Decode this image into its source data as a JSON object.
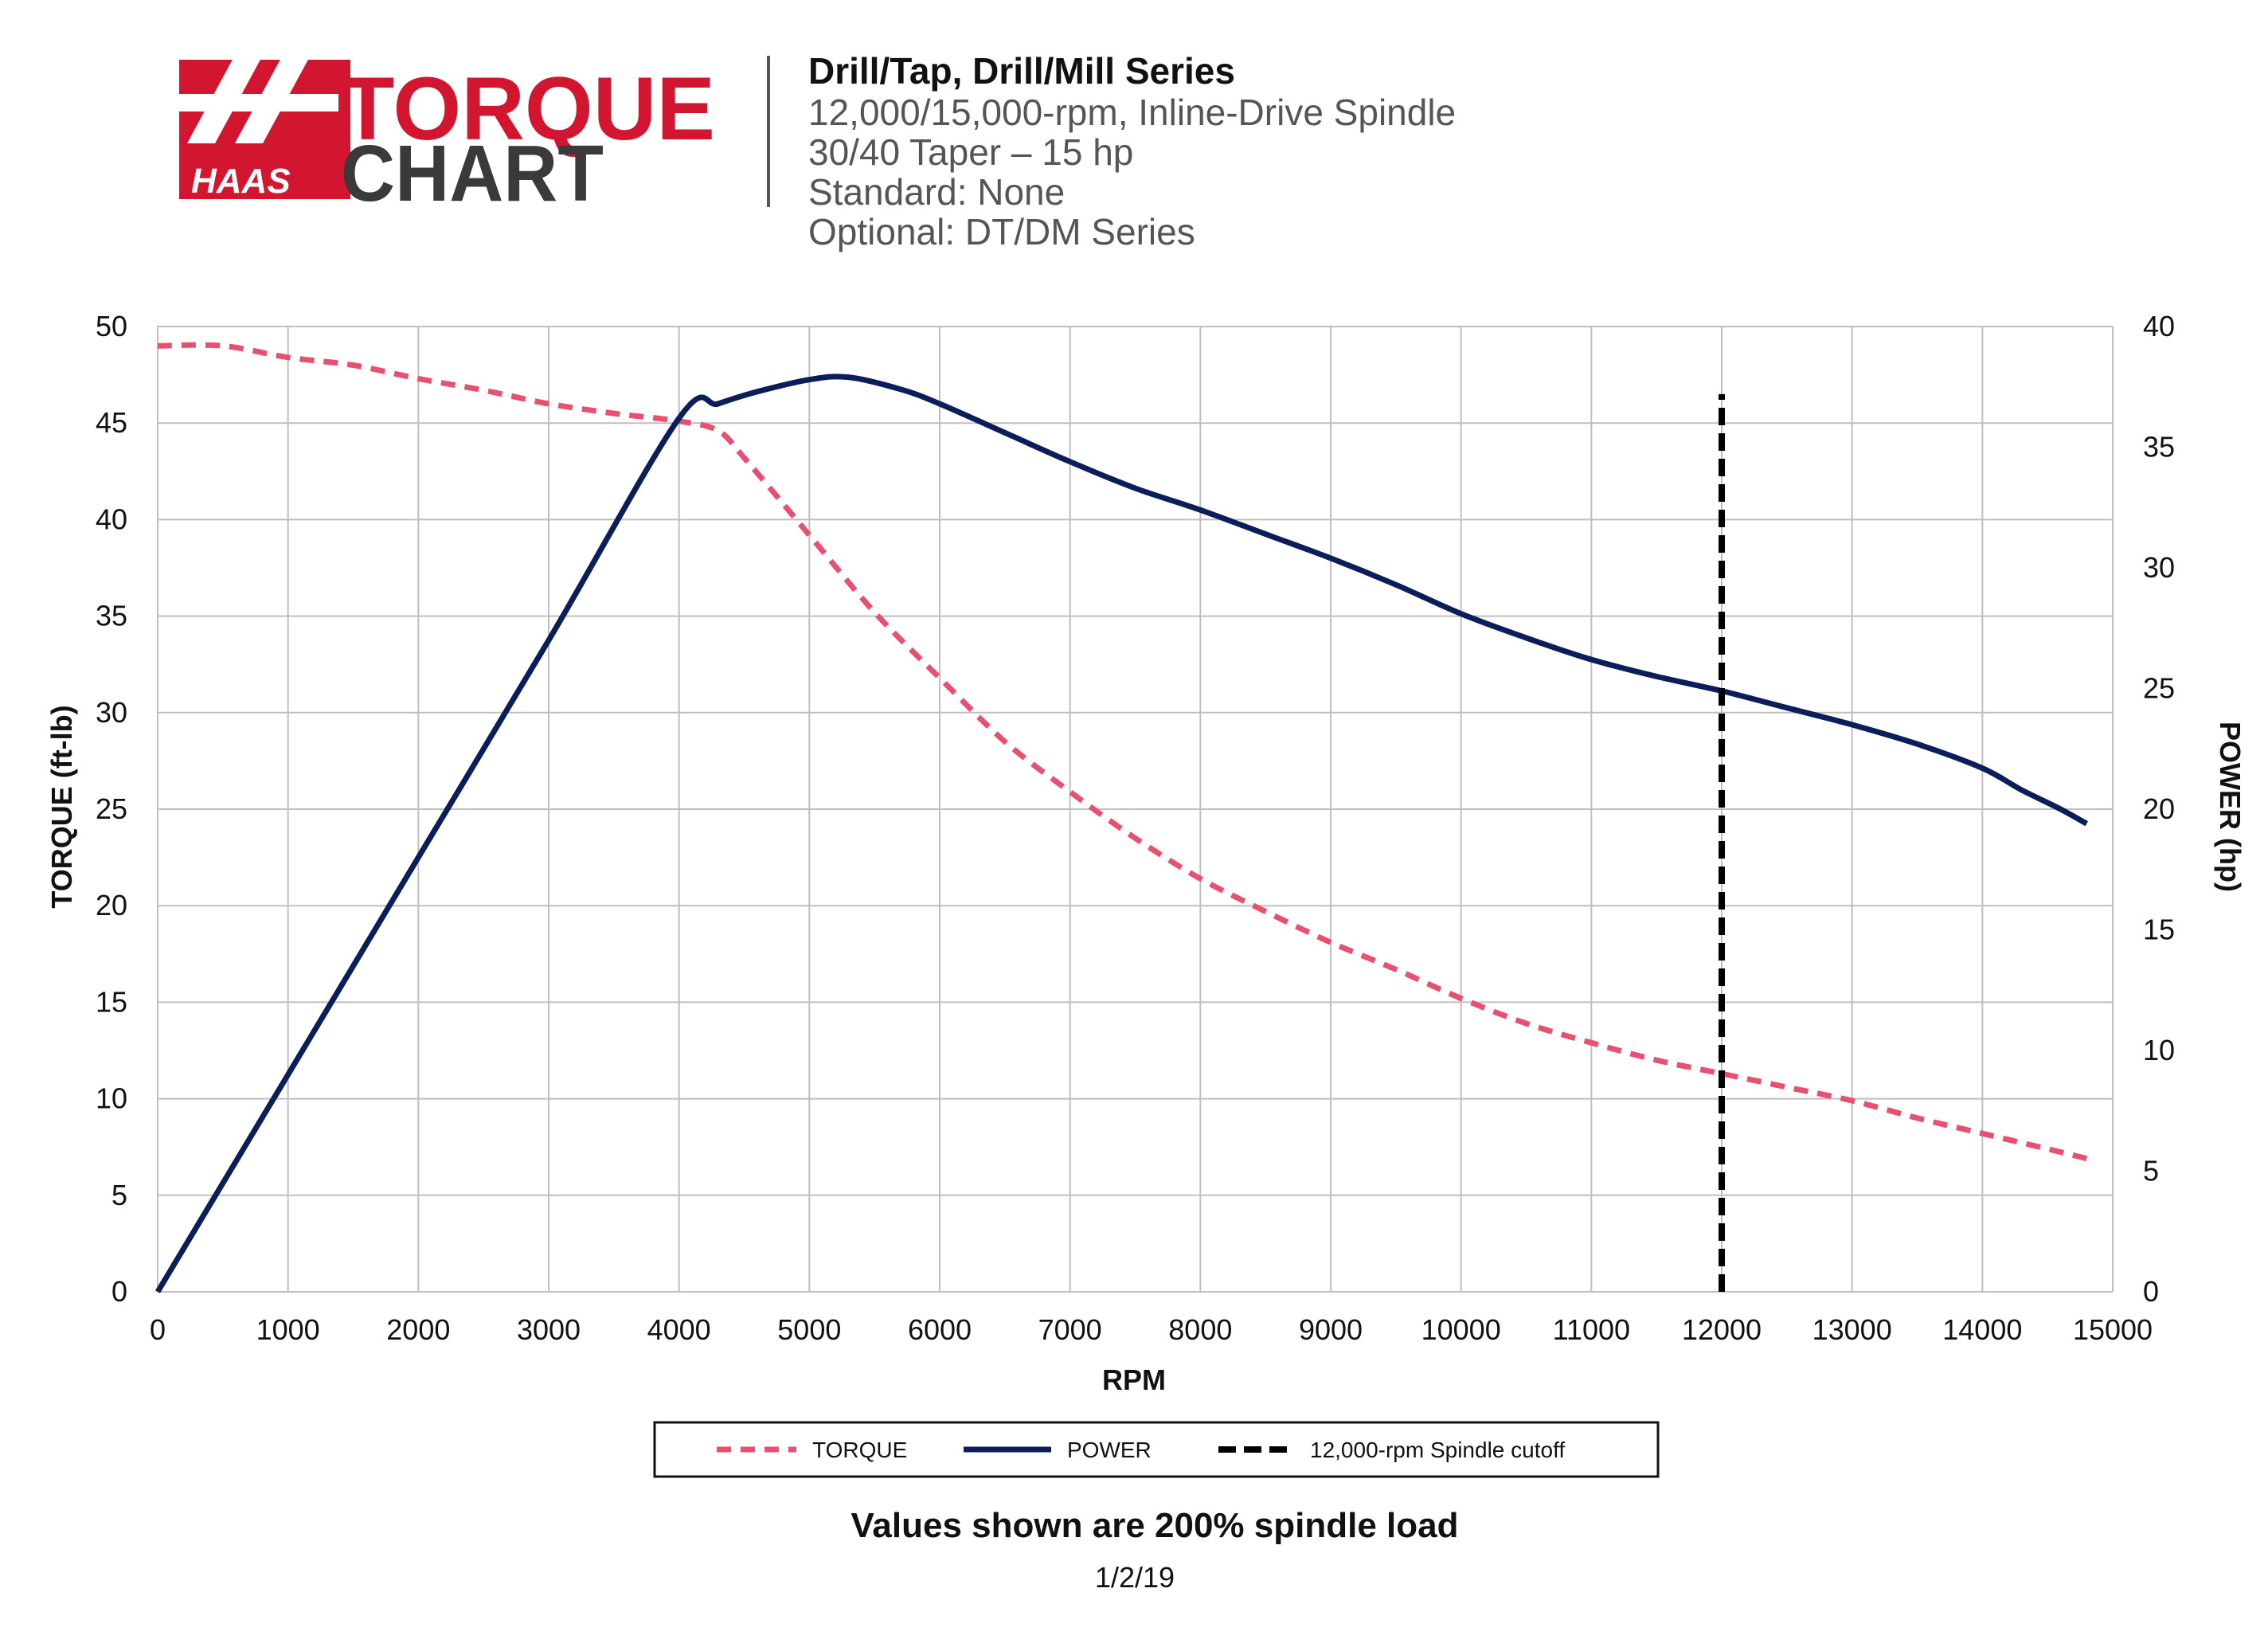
{
  "logo": {
    "brand": "HAAS",
    "word1": "TORQUE",
    "word2": "CHART"
  },
  "header": {
    "title": "Drill/Tap, Drill/Mill Series",
    "line1": "12,000/15,000-rpm, Inline-Drive Spindle",
    "line2": "30/40 Taper – 15 hp",
    "line3": "Standard: None",
    "line4": "Optional: DT/DM Series"
  },
  "footnote": "Values shown are 200% spindle load",
  "date": "1/2/19",
  "colors": {
    "torque": "#e8506f",
    "power": "#0c1e5a",
    "cutoff": "#000000",
    "grid": "#bfbfbf",
    "logo_red": "#d3162f",
    "logo_dark": "#3a3a3a"
  },
  "chart_data": {
    "type": "line",
    "xlabel": "RPM",
    "ylabel": "TORQUE (ft-lb)",
    "y2label": "POWER (hp)",
    "xlim": [
      0,
      15000
    ],
    "ylim": [
      0,
      50
    ],
    "y2lim": [
      0,
      40
    ],
    "xticks": [
      0,
      1000,
      2000,
      3000,
      4000,
      5000,
      6000,
      7000,
      8000,
      9000,
      10000,
      11000,
      12000,
      13000,
      14000,
      15000
    ],
    "yticks": [
      0,
      5,
      10,
      15,
      20,
      25,
      30,
      35,
      40,
      45,
      50
    ],
    "y2ticks": [
      0,
      5,
      10,
      15,
      20,
      25,
      30,
      35,
      40
    ],
    "grid": true,
    "legend_position": "bottom",
    "series": [
      {
        "name": "TORQUE",
        "axis": "left",
        "style": "dashed",
        "x": [
          0,
          500,
          1000,
          1500,
          2000,
          2500,
          3000,
          3500,
          4000,
          4300,
          4500,
          5000,
          5500,
          6000,
          6500,
          7000,
          7500,
          8000,
          8500,
          9000,
          9500,
          10000,
          10500,
          11000,
          11500,
          12000,
          12500,
          13000,
          13500,
          14000,
          14500,
          14800
        ],
        "y": [
          49,
          49,
          48.4,
          48,
          47.3,
          46.7,
          46,
          45.5,
          45.1,
          44.6,
          43.2,
          39.2,
          35.2,
          31.8,
          28.5,
          25.9,
          23.5,
          21.4,
          19.7,
          18.1,
          16.7,
          15.2,
          13.9,
          12.9,
          12,
          11.3,
          10.6,
          9.9,
          9,
          8.2,
          7.4,
          6.9
        ]
      },
      {
        "name": "POWER",
        "axis": "right",
        "style": "solid",
        "x": [
          0,
          1000,
          2000,
          3000,
          4000,
          4300,
          4600,
          5000,
          5300,
          5700,
          6000,
          6500,
          7000,
          7500,
          8000,
          8500,
          9000,
          9500,
          10000,
          10500,
          11000,
          11500,
          12000,
          12500,
          13000,
          13500,
          14000,
          14300,
          14600,
          14800
        ],
        "y": [
          0,
          9,
          18,
          27,
          36.2,
          36.8,
          37.3,
          37.8,
          37.9,
          37.4,
          36.8,
          35.6,
          34.4,
          33.3,
          32.4,
          31.4,
          30.4,
          29.3,
          28.1,
          27.1,
          26.2,
          25.5,
          24.9,
          24.2,
          23.5,
          22.7,
          21.7,
          20.8,
          20,
          19.4
        ]
      },
      {
        "name": "12,000-rpm Spindle cutoff",
        "axis": "left",
        "style": "dashed-vertical",
        "x": [
          12000,
          12000
        ],
        "y": [
          0,
          46.5
        ]
      }
    ]
  }
}
